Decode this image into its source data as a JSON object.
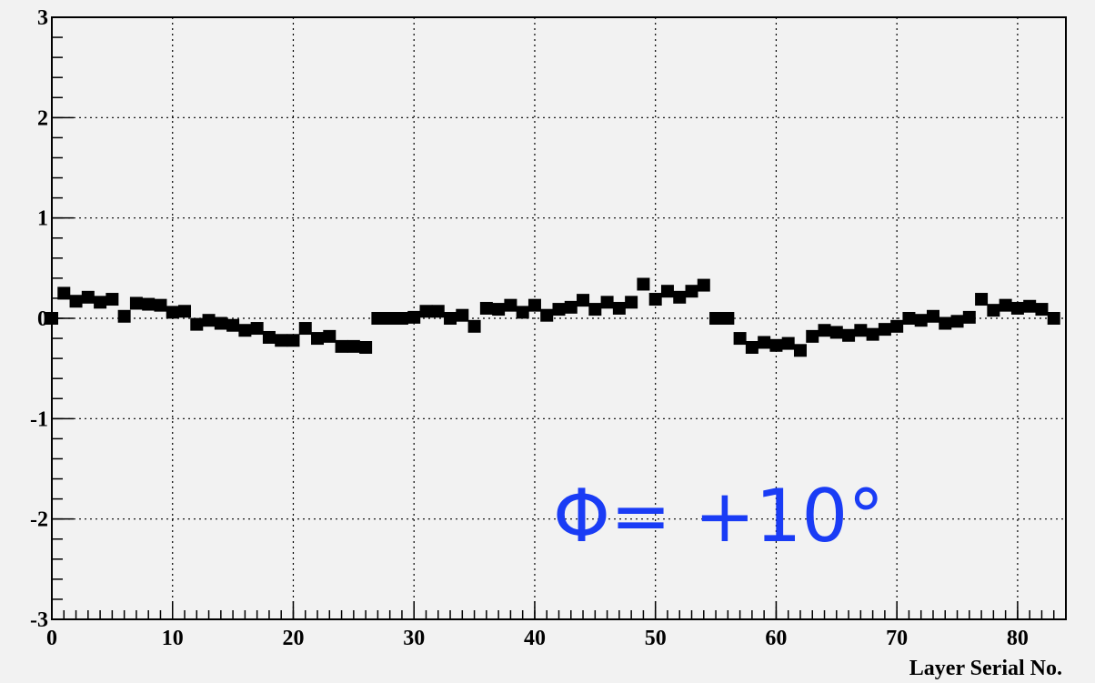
{
  "chart_data": {
    "type": "scatter",
    "x_label": "Layer Serial No.",
    "annotation": "Φ= +10°",
    "color": "#000000",
    "grid": true,
    "xlim": [
      0,
      84
    ],
    "ylim": [
      -3,
      3
    ],
    "xticks": [
      0,
      10,
      20,
      30,
      40,
      50,
      60,
      70,
      80
    ],
    "yticks": [
      -3,
      -2,
      -1,
      0,
      1,
      2,
      3
    ],
    "x": [
      0,
      1,
      2,
      3,
      4,
      5,
      6,
      7,
      8,
      9,
      10,
      11,
      12,
      13,
      14,
      15,
      16,
      17,
      18,
      19,
      20,
      21,
      22,
      23,
      24,
      25,
      26,
      27,
      28,
      29,
      30,
      31,
      32,
      33,
      34,
      35,
      36,
      37,
      38,
      39,
      40,
      41,
      42,
      43,
      44,
      45,
      46,
      47,
      48,
      49,
      50,
      51,
      52,
      53,
      54,
      55,
      56,
      57,
      58,
      59,
      60,
      61,
      62,
      63,
      64,
      65,
      66,
      67,
      68,
      69,
      70,
      71,
      72,
      73,
      74,
      75,
      76,
      77,
      78,
      79,
      80,
      81,
      82,
      83
    ],
    "values": [
      0.0,
      0.25,
      0.17,
      0.21,
      0.16,
      0.19,
      0.02,
      0.15,
      0.14,
      0.13,
      0.06,
      0.07,
      -0.06,
      -0.02,
      -0.05,
      -0.07,
      -0.12,
      -0.1,
      -0.19,
      -0.22,
      -0.22,
      -0.1,
      -0.2,
      -0.18,
      -0.28,
      -0.28,
      -0.29,
      0.0,
      0.0,
      0.0,
      0.01,
      0.07,
      0.07,
      0.0,
      0.03,
      -0.08,
      0.1,
      0.09,
      0.13,
      0.06,
      0.13,
      0.03,
      0.09,
      0.11,
      0.18,
      0.09,
      0.16,
      0.1,
      0.16,
      0.34,
      0.19,
      0.27,
      0.21,
      0.27,
      0.33,
      0.0,
      0.0,
      -0.2,
      -0.29,
      -0.24,
      -0.27,
      -0.25,
      -0.32,
      -0.18,
      -0.12,
      -0.14,
      -0.17,
      -0.12,
      -0.16,
      -0.11,
      -0.08,
      0.0,
      -0.02,
      0.02,
      -0.05,
      -0.03,
      0.01,
      0.19,
      0.08,
      0.13,
      0.1,
      0.12,
      0.09,
      0.0
    ]
  }
}
